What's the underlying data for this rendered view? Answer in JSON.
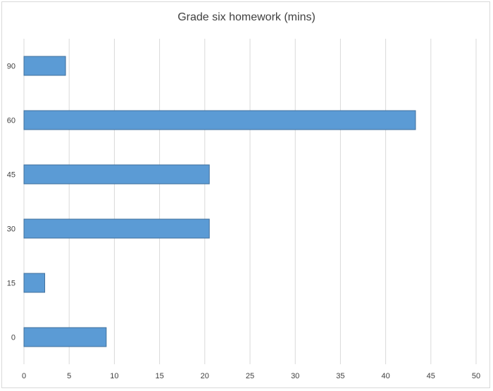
{
  "chart_data": {
    "type": "bar",
    "orientation": "horizontal",
    "title": "Grade six homework (mins)",
    "xlabel": "",
    "ylabel": "",
    "categories": [
      "0",
      "15",
      "30",
      "45",
      "60",
      "90"
    ],
    "values": [
      9.1,
      2.3,
      20.5,
      20.5,
      43.3,
      4.6
    ],
    "xlim": [
      0,
      50
    ],
    "xticks": [
      "0",
      "5",
      "10",
      "15",
      "20",
      "25",
      "30",
      "35",
      "40",
      "45",
      "50"
    ],
    "grid": "vertical",
    "legend": "none",
    "bar_color": "#5b9bd5",
    "bar_edge_color": "#41719c",
    "grid_color": "#d9d9d9"
  }
}
